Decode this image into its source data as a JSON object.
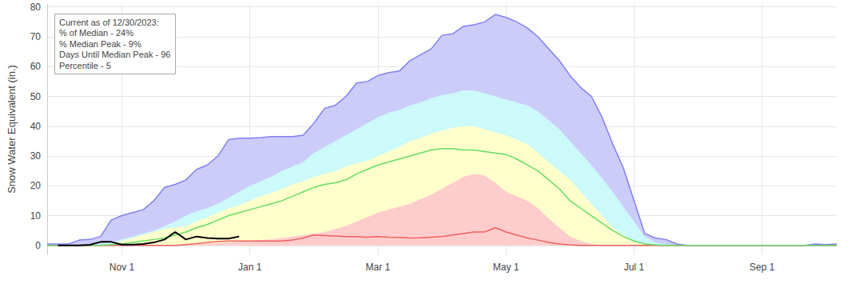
{
  "chart_data": {
    "type": "line",
    "y_label": "Snow Water Equivalent (in.)",
    "annotation": [
      "Current as of 12/30/2023:",
      "% of Median - 24%",
      "% Median Peak - 9%",
      "Days Until Median Peak - 96",
      "Percentile - 5"
    ],
    "grid": true,
    "ylim": [
      -3,
      81
    ],
    "yticks": [
      0,
      10,
      20,
      30,
      40,
      50,
      60,
      70,
      80
    ],
    "categories": [
      null,
      null,
      null,
      null,
      null,
      null,
      null,
      "Nov 1",
      null,
      null,
      null,
      null,
      null,
      null,
      null,
      null,
      null,
      null,
      null,
      "Jan 1",
      null,
      null,
      null,
      null,
      null,
      null,
      null,
      null,
      null,
      null,
      null,
      "Mar 1",
      null,
      null,
      null,
      null,
      null,
      null,
      null,
      null,
      null,
      null,
      null,
      "May 1",
      null,
      null,
      null,
      null,
      null,
      null,
      null,
      null,
      null,
      null,
      null,
      "Jul 1",
      null,
      null,
      null,
      null,
      null,
      null,
      null,
      null,
      null,
      null,
      null,
      "Sep 1",
      null,
      null,
      null,
      null,
      null,
      null,
      null
    ],
    "series": [
      {
        "type": "area",
        "color": "#8080f0",
        "line_style": "solid",
        "values": [
          0.5,
          0.5,
          0.5,
          1.8,
          2,
          3,
          8.5,
          10,
          11,
          12,
          15,
          19.5,
          20.5,
          22,
          25.5,
          27,
          30,
          35.5,
          36,
          36,
          36.2,
          36.5,
          36.5,
          36.5,
          37,
          41,
          46,
          47,
          50,
          54.5,
          55,
          57,
          58,
          58.5,
          62,
          64,
          66,
          70.5,
          71,
          73.5,
          74,
          75,
          77.5,
          76.5,
          75,
          73,
          70,
          66,
          62,
          57,
          53,
          50,
          43,
          34,
          26,
          15,
          4,
          2.5,
          2,
          0.5,
          0,
          0,
          0,
          0,
          0,
          0,
          0,
          0,
          0,
          0,
          0,
          0,
          0.5,
          0.3,
          0.5
        ]
      },
      {
        "type": "area",
        "color": "#80f0f0",
        "line_style": "none",
        "values": [
          0,
          0,
          0,
          0,
          0.3,
          0.5,
          1,
          2,
          3,
          4,
          5,
          6.5,
          8,
          10,
          11.5,
          12.5,
          14,
          16,
          18,
          20,
          21.5,
          23,
          25,
          26.5,
          28,
          31,
          33,
          35,
          37,
          39,
          41,
          43,
          44.5,
          45.5,
          47,
          48,
          49.5,
          50.5,
          51,
          52,
          52,
          51,
          50,
          49,
          48,
          47,
          45,
          42,
          39,
          35,
          31,
          27,
          22.5,
          18,
          13,
          8,
          3,
          1,
          0.3,
          0,
          0,
          0,
          0,
          0,
          0,
          0,
          0,
          0,
          0,
          0,
          0,
          0,
          0,
          0,
          0
        ]
      },
      {
        "type": "area",
        "color": "#ffff80",
        "line_style": "none",
        "values": [
          0,
          0,
          0,
          0,
          0,
          0.2,
          0.5,
          1.5,
          2.5,
          3.5,
          4.5,
          5.5,
          6,
          6.5,
          8,
          9.5,
          11,
          12.5,
          13.5,
          15,
          16.5,
          17.5,
          19,
          20.5,
          21.5,
          23,
          24,
          25,
          26.5,
          27.5,
          28.5,
          30,
          31.5,
          33,
          35,
          36,
          37.5,
          38.5,
          39.5,
          40,
          40,
          39,
          38,
          37,
          35.5,
          34,
          31,
          28,
          25,
          22,
          18,
          14,
          10,
          6,
          3.5,
          1.5,
          0.5,
          0,
          0,
          0,
          0,
          0,
          0,
          0,
          0,
          0,
          0,
          0,
          0,
          0,
          0,
          0,
          0,
          0,
          0
        ]
      },
      {
        "type": "area",
        "color": "#ff8080",
        "line_style": "none",
        "values": [
          0,
          0,
          0,
          0,
          0,
          0,
          0,
          0,
          0,
          0,
          0,
          0,
          0,
          0.2,
          0.4,
          0.6,
          0.8,
          1,
          1.2,
          1.5,
          1.8,
          2,
          2.5,
          3,
          3.5,
          4,
          4.5,
          5.5,
          6.5,
          8,
          9.5,
          11,
          12,
          13,
          14,
          15.5,
          17,
          19,
          21,
          23,
          24,
          23.5,
          21,
          18,
          16.5,
          15,
          12.5,
          9,
          6,
          3,
          1.5,
          0.5,
          0,
          0,
          0,
          0,
          0,
          0,
          0,
          0,
          0,
          0,
          0,
          0,
          0,
          0,
          0,
          0,
          0,
          0,
          0,
          0,
          0,
          0,
          0
        ]
      },
      {
        "type": "line",
        "color": "#f06060",
        "line_style": "solid",
        "values": [
          0,
          0,
          0,
          0,
          0,
          0,
          0,
          0,
          0,
          0,
          0,
          0,
          0,
          0.3,
          0.6,
          1,
          1.3,
          1.5,
          1.5,
          1.5,
          1.5,
          1.5,
          1.5,
          1.8,
          2.5,
          3.5,
          3.3,
          3.2,
          3,
          3,
          2.8,
          3,
          2.8,
          2.7,
          2.5,
          2.6,
          2.8,
          3,
          3.5,
          4,
          4.5,
          4.5,
          6,
          4.5,
          3.5,
          2.5,
          1.8,
          1,
          0.5,
          0.2,
          0,
          0,
          0,
          0,
          0,
          0,
          0,
          0,
          0,
          0,
          0,
          0,
          0,
          0,
          0,
          0,
          0,
          0,
          0,
          0,
          0,
          0,
          0,
          0,
          0
        ]
      },
      {
        "type": "line",
        "color": "#66dd66",
        "line_style": "solid",
        "values": [
          0,
          0,
          0,
          0,
          0,
          0.1,
          0.3,
          0.5,
          1,
          1.5,
          2,
          2.5,
          3.5,
          4.5,
          6,
          7,
          8.5,
          10,
          11,
          12,
          13,
          14,
          15,
          16.5,
          18,
          19.5,
          20.5,
          21,
          22,
          24,
          25.5,
          27,
          28,
          29,
          30,
          31,
          32,
          32.5,
          32.5,
          32,
          32,
          31.5,
          31,
          30.5,
          29,
          27,
          25,
          22,
          19,
          15,
          12.5,
          10,
          7.5,
          5,
          3,
          1.5,
          0.5,
          0.2,
          0,
          0,
          0,
          0,
          0,
          0,
          0,
          0,
          0,
          0,
          0,
          0,
          0,
          0,
          0,
          0,
          0
        ]
      },
      {
        "type": "line",
        "color": "#000000",
        "line_style": "solid",
        "values": [
          null,
          0,
          0,
          0,
          0.2,
          1.2,
          1.2,
          0.3,
          0.3,
          0.5,
          1,
          2,
          4.5,
          2,
          3,
          2.5,
          2.3,
          2.3,
          3,
          null,
          null,
          null,
          null,
          null,
          null,
          null,
          null,
          null,
          null,
          null,
          null,
          null,
          null,
          null,
          null,
          null,
          null,
          null,
          null,
          null,
          null,
          null,
          null,
          null,
          null,
          null,
          null,
          null,
          null,
          null,
          null,
          null,
          null,
          null,
          null,
          null,
          null,
          null,
          null,
          null,
          null,
          null,
          null,
          null,
          null,
          null,
          null,
          null,
          null,
          null,
          null,
          null,
          null,
          null,
          null
        ]
      }
    ]
  }
}
